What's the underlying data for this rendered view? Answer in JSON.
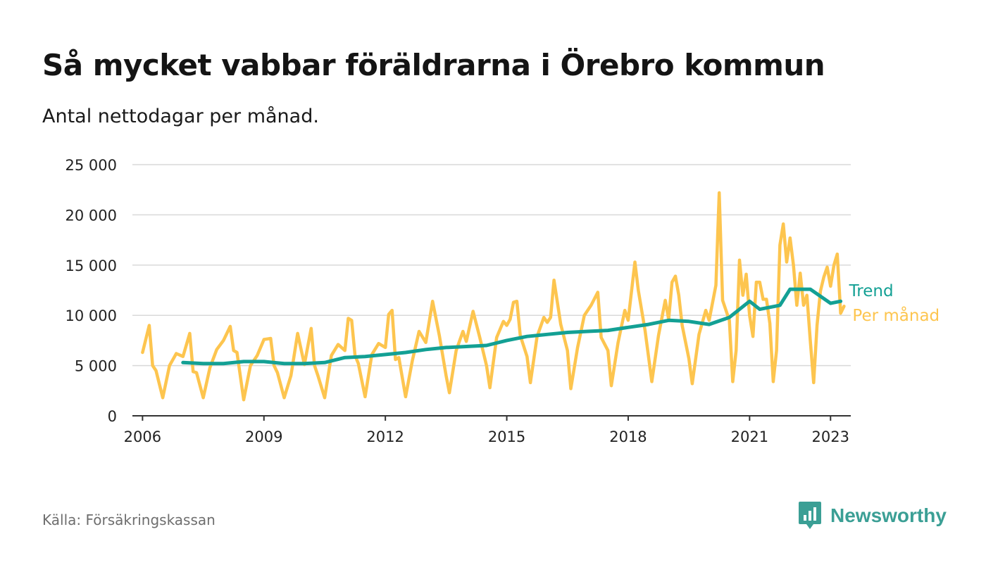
{
  "header": {
    "title": "Så mycket vabbar föräldrarna i Örebro kommun",
    "subtitle": "Antal nettodagar per månad."
  },
  "footer": {
    "source": "Källa: Försäkringskassan",
    "brand": "Newsworthy"
  },
  "colors": {
    "monthly": "#fdc54f",
    "trend": "#13a094",
    "grid": "#d9d9d9",
    "axis": "#333333",
    "brand": "#3b9f95"
  },
  "icons": {
    "brand_logo": "chart-bubble-icon"
  },
  "chart_data": {
    "type": "line",
    "title": "Så mycket vabbar föräldrarna i Örebro kommun",
    "subtitle": "Antal nettodagar per månad.",
    "xlabel": "",
    "ylabel": "",
    "ylim": [
      0,
      25000
    ],
    "xlim": [
      "2005-10",
      "2023-07"
    ],
    "yticks": [
      0,
      5000,
      10000,
      15000,
      20000,
      25000
    ],
    "ytick_labels": [
      "0",
      "5 000",
      "10 000",
      "15 000",
      "20 000",
      "25 000"
    ],
    "xticks": [
      "2006-01",
      "2009-01",
      "2012-01",
      "2015-01",
      "2018-01",
      "2021-01",
      "2023-01"
    ],
    "xtick_labels": [
      "2006",
      "2009",
      "2012",
      "2015",
      "2018",
      "2021",
      "2023"
    ],
    "grid": true,
    "legend": "direct labels at line ends (right)",
    "series": [
      {
        "name": "Trend",
        "color": "#13a094",
        "points": [
          [
            "2007-01",
            5300
          ],
          [
            "2007-07",
            5200
          ],
          [
            "2008-01",
            5200
          ],
          [
            "2008-07",
            5400
          ],
          [
            "2009-01",
            5400
          ],
          [
            "2009-07",
            5200
          ],
          [
            "2010-01",
            5200
          ],
          [
            "2010-07",
            5300
          ],
          [
            "2011-01",
            5800
          ],
          [
            "2011-07",
            5900
          ],
          [
            "2012-01",
            6100
          ],
          [
            "2012-07",
            6300
          ],
          [
            "2013-01",
            6600
          ],
          [
            "2013-07",
            6800
          ],
          [
            "2014-01",
            6900
          ],
          [
            "2014-07",
            7000
          ],
          [
            "2015-01",
            7500
          ],
          [
            "2015-07",
            7900
          ],
          [
            "2016-01",
            8100
          ],
          [
            "2016-07",
            8300
          ],
          [
            "2017-01",
            8400
          ],
          [
            "2017-07",
            8500
          ],
          [
            "2018-01",
            8800
          ],
          [
            "2018-07",
            9100
          ],
          [
            "2019-01",
            9500
          ],
          [
            "2019-07",
            9400
          ],
          [
            "2020-01",
            9100
          ],
          [
            "2020-07",
            9800
          ],
          [
            "2021-01",
            11400
          ],
          [
            "2021-04",
            10600
          ],
          [
            "2021-10",
            11000
          ],
          [
            "2022-01",
            12600
          ],
          [
            "2022-07",
            12600
          ],
          [
            "2023-01",
            11200
          ],
          [
            "2023-04",
            11400
          ]
        ]
      },
      {
        "name": "Per månad",
        "color": "#fdc54f",
        "points": [
          [
            "2006-01",
            6300
          ],
          [
            "2006-03",
            9000
          ],
          [
            "2006-04",
            5000
          ],
          [
            "2006-05",
            4500
          ],
          [
            "2006-07",
            1800
          ],
          [
            "2006-09",
            5000
          ],
          [
            "2006-11",
            6200
          ],
          [
            "2007-01",
            5900
          ],
          [
            "2007-03",
            8200
          ],
          [
            "2007-04",
            4400
          ],
          [
            "2007-05",
            4300
          ],
          [
            "2007-07",
            1800
          ],
          [
            "2007-09",
            4800
          ],
          [
            "2007-11",
            6600
          ],
          [
            "2008-01",
            7500
          ],
          [
            "2008-03",
            8900
          ],
          [
            "2008-04",
            6500
          ],
          [
            "2008-05",
            6300
          ],
          [
            "2008-07",
            1600
          ],
          [
            "2008-09",
            5000
          ],
          [
            "2008-11",
            6000
          ],
          [
            "2009-01",
            7600
          ],
          [
            "2009-03",
            7700
          ],
          [
            "2009-04",
            5000
          ],
          [
            "2009-05",
            4300
          ],
          [
            "2009-07",
            1800
          ],
          [
            "2009-09",
            4000
          ],
          [
            "2009-11",
            8200
          ],
          [
            "2010-01",
            5100
          ],
          [
            "2010-03",
            8700
          ],
          [
            "2010-04",
            5000
          ],
          [
            "2010-05",
            4000
          ],
          [
            "2010-07",
            1800
          ],
          [
            "2010-09",
            6000
          ],
          [
            "2010-11",
            7100
          ],
          [
            "2011-01",
            6500
          ],
          [
            "2011-02",
            9700
          ],
          [
            "2011-03",
            9500
          ],
          [
            "2011-04",
            6000
          ],
          [
            "2011-05",
            5200
          ],
          [
            "2011-07",
            1900
          ],
          [
            "2011-09",
            6100
          ],
          [
            "2011-11",
            7200
          ],
          [
            "2012-01",
            6800
          ],
          [
            "2012-02",
            10100
          ],
          [
            "2012-03",
            10500
          ],
          [
            "2012-04",
            5600
          ],
          [
            "2012-05",
            5800
          ],
          [
            "2012-07",
            1900
          ],
          [
            "2012-09",
            5500
          ],
          [
            "2012-11",
            8400
          ],
          [
            "2013-01",
            7300
          ],
          [
            "2013-03",
            11400
          ],
          [
            "2013-05",
            8000
          ],
          [
            "2013-07",
            4000
          ],
          [
            "2013-08",
            2300
          ],
          [
            "2013-10",
            6500
          ],
          [
            "2013-12",
            8400
          ],
          [
            "2014-01",
            7400
          ],
          [
            "2014-03",
            10400
          ],
          [
            "2014-05",
            7800
          ],
          [
            "2014-07",
            5000
          ],
          [
            "2014-08",
            2800
          ],
          [
            "2014-10",
            7800
          ],
          [
            "2014-12",
            9400
          ],
          [
            "2015-01",
            9000
          ],
          [
            "2015-02",
            9600
          ],
          [
            "2015-03",
            11300
          ],
          [
            "2015-04",
            11400
          ],
          [
            "2015-05",
            8000
          ],
          [
            "2015-07",
            5900
          ],
          [
            "2015-08",
            3300
          ],
          [
            "2015-10",
            7900
          ],
          [
            "2015-12",
            9800
          ],
          [
            "2016-01",
            9300
          ],
          [
            "2016-02",
            9800
          ],
          [
            "2016-03",
            13500
          ],
          [
            "2016-05",
            9100
          ],
          [
            "2016-07",
            6500
          ],
          [
            "2016-08",
            2700
          ],
          [
            "2016-10",
            6800
          ],
          [
            "2016-12",
            10000
          ],
          [
            "2017-02",
            11000
          ],
          [
            "2017-04",
            12300
          ],
          [
            "2017-05",
            7800
          ],
          [
            "2017-07",
            6500
          ],
          [
            "2017-08",
            3000
          ],
          [
            "2017-10",
            7300
          ],
          [
            "2017-12",
            10500
          ],
          [
            "2018-01",
            9500
          ],
          [
            "2018-03",
            15300
          ],
          [
            "2018-04",
            12500
          ],
          [
            "2018-06",
            8500
          ],
          [
            "2018-08",
            3400
          ],
          [
            "2018-10",
            8000
          ],
          [
            "2018-12",
            11500
          ],
          [
            "2019-01",
            9600
          ],
          [
            "2019-02",
            13300
          ],
          [
            "2019-03",
            13900
          ],
          [
            "2019-04",
            12000
          ],
          [
            "2019-05",
            9000
          ],
          [
            "2019-07",
            5700
          ],
          [
            "2019-08",
            3200
          ],
          [
            "2019-10",
            8100
          ],
          [
            "2019-12",
            10500
          ],
          [
            "2020-01",
            9500
          ],
          [
            "2020-03",
            13000
          ],
          [
            "2020-04",
            22200
          ],
          [
            "2020-05",
            11500
          ],
          [
            "2020-07",
            9500
          ],
          [
            "2020-08",
            3400
          ],
          [
            "2020-09",
            6500
          ],
          [
            "2020-10",
            15500
          ],
          [
            "2020-11",
            12000
          ],
          [
            "2020-12",
            14100
          ],
          [
            "2021-01",
            10000
          ],
          [
            "2021-02",
            7900
          ],
          [
            "2021-03",
            13300
          ],
          [
            "2021-04",
            13300
          ],
          [
            "2021-05",
            11600
          ],
          [
            "2021-06",
            11600
          ],
          [
            "2021-07",
            9200
          ],
          [
            "2021-08",
            3400
          ],
          [
            "2021-09",
            6500
          ],
          [
            "2021-10",
            17000
          ],
          [
            "2021-11",
            19100
          ],
          [
            "2021-12",
            15300
          ],
          [
            "2022-01",
            17700
          ],
          [
            "2022-02",
            15000
          ],
          [
            "2022-03",
            11000
          ],
          [
            "2022-04",
            14200
          ],
          [
            "2022-05",
            11000
          ],
          [
            "2022-06",
            12000
          ],
          [
            "2022-07",
            7500
          ],
          [
            "2022-08",
            3300
          ],
          [
            "2022-09",
            9000
          ],
          [
            "2022-10",
            12400
          ],
          [
            "2022-11",
            13800
          ],
          [
            "2022-12",
            14800
          ],
          [
            "2023-01",
            12900
          ],
          [
            "2023-02",
            15000
          ],
          [
            "2023-03",
            16100
          ],
          [
            "2023-04",
            10200
          ],
          [
            "2023-05",
            10900
          ]
        ]
      }
    ]
  }
}
